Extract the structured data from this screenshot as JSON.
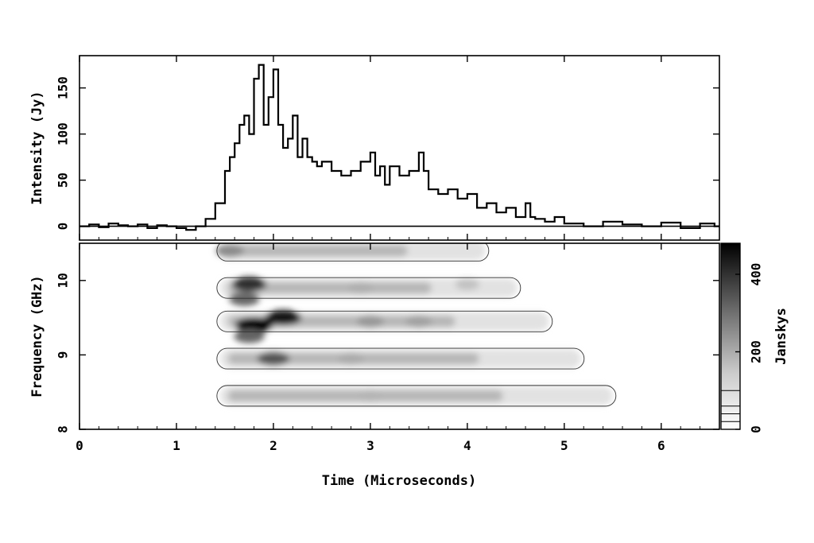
{
  "chart_data": [
    {
      "type": "line",
      "step": true,
      "title": "",
      "xlabel": "Time (Microseconds)",
      "ylabel": "Intensity (Jy)",
      "xlim": [
        0,
        6.6
      ],
      "ylim": [
        -15,
        185
      ],
      "xticks": [
        "0",
        "1",
        "2",
        "3",
        "4",
        "5",
        "6"
      ],
      "yticks": [
        "0",
        "50",
        "100",
        "150"
      ],
      "series": [
        {
          "x": [
            0.0,
            0.1,
            0.2,
            0.3,
            0.4,
            0.5,
            0.6,
            0.7,
            0.8,
            0.9,
            1.0,
            1.1,
            1.2,
            1.3,
            1.4,
            1.5,
            1.55,
            1.6,
            1.65,
            1.7,
            1.75,
            1.8,
            1.85,
            1.9,
            1.95,
            2.0,
            2.05,
            2.1,
            2.15,
            2.2,
            2.25,
            2.3,
            2.35,
            2.4,
            2.45,
            2.5,
            2.6,
            2.7,
            2.8,
            2.9,
            3.0,
            3.05,
            3.1,
            3.15,
            3.2,
            3.3,
            3.4,
            3.5,
            3.55,
            3.6,
            3.7,
            3.8,
            3.9,
            4.0,
            4.1,
            4.2,
            4.3,
            4.4,
            4.5,
            4.6,
            4.65,
            4.7,
            4.8,
            4.9,
            5.0,
            5.2,
            5.4,
            5.6,
            5.8,
            6.0,
            6.2,
            6.4,
            6.55
          ],
          "y": [
            0,
            2,
            -1,
            3,
            1,
            0,
            2,
            -2,
            1,
            0,
            -2,
            -4,
            0,
            8,
            25,
            60,
            75,
            90,
            110,
            120,
            100,
            160,
            175,
            110,
            140,
            170,
            110,
            85,
            95,
            120,
            75,
            95,
            75,
            70,
            65,
            70,
            60,
            55,
            60,
            70,
            80,
            55,
            65,
            45,
            65,
            55,
            60,
            80,
            60,
            40,
            35,
            40,
            30,
            35,
            20,
            25,
            15,
            20,
            10,
            25,
            10,
            8,
            5,
            10,
            3,
            0,
            5,
            2,
            0,
            4,
            -2,
            3,
            0
          ]
        }
      ]
    },
    {
      "type": "heatmap",
      "title": "",
      "xlabel": "Time (Microseconds)",
      "ylabel": "Frequency (GHz)",
      "xlim": [
        0,
        6.6
      ],
      "ylim": [
        8,
        10.5
      ],
      "yticks": [
        "8",
        "9",
        "10"
      ],
      "colorbar": {
        "label": "Janskys",
        "ticks": [
          "0",
          "200",
          "400"
        ],
        "range": [
          0,
          480
        ]
      },
      "bands_ghz": [
        8.45,
        8.95,
        9.45,
        9.9,
        10.4
      ],
      "hotspots": [
        {
          "x": 1.8,
          "y": 9.4,
          "value": 480
        },
        {
          "x": 2.1,
          "y": 9.5,
          "value": 430
        },
        {
          "x": 1.75,
          "y": 9.95,
          "value": 380
        },
        {
          "x": 2.0,
          "y": 8.95,
          "value": 300
        },
        {
          "x": 1.7,
          "y": 9.75,
          "value": 260
        },
        {
          "x": 1.55,
          "y": 10.4,
          "value": 180
        },
        {
          "x": 1.75,
          "y": 9.25,
          "value": 260
        },
        {
          "x": 3.0,
          "y": 9.45,
          "value": 150
        },
        {
          "x": 3.5,
          "y": 9.45,
          "value": 130
        },
        {
          "x": 2.8,
          "y": 8.95,
          "value": 110
        },
        {
          "x": 3.0,
          "y": 8.45,
          "value": 90
        },
        {
          "x": 2.9,
          "y": 9.9,
          "value": 100
        },
        {
          "x": 4.0,
          "y": 9.95,
          "value": 60
        }
      ]
    }
  ]
}
